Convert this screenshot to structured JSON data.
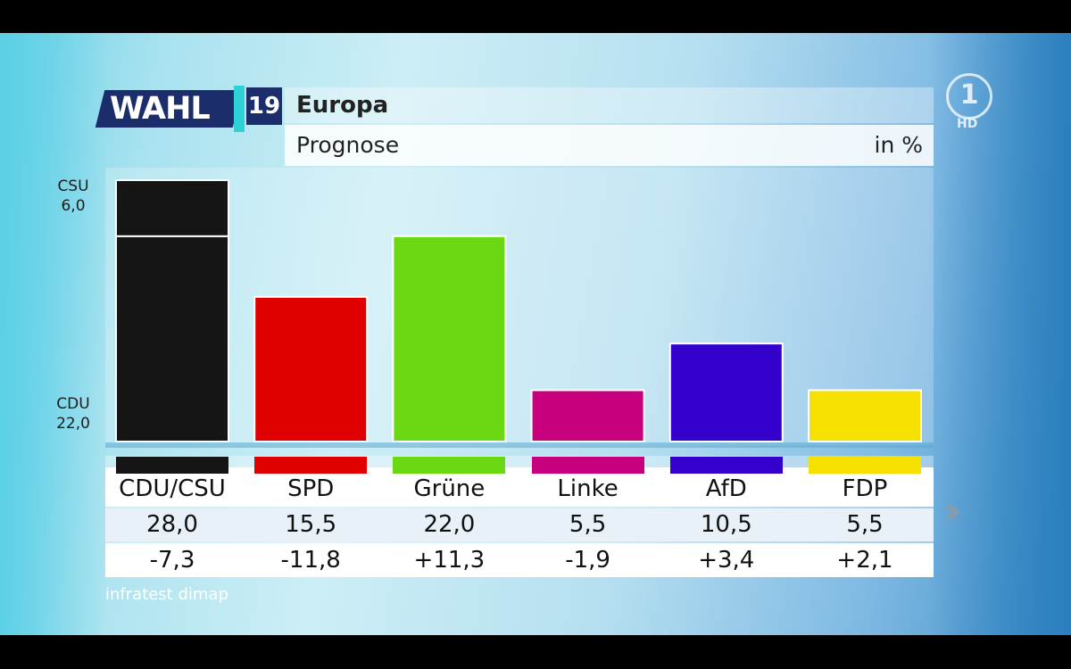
{
  "header": {
    "logo_word": "WAHL",
    "logo_year": "19",
    "title": "Europa",
    "subtitle": "Prognose",
    "unit": "in %"
  },
  "broadcaster": {
    "logo": "1",
    "badge": "HD"
  },
  "side_labels": {
    "csu_name": "CSU",
    "csu_value": "6,0",
    "cdu_name": "CDU",
    "cdu_value": "22,0"
  },
  "source": "infratest dimap",
  "nav": {
    "next_icon": "double-chevron-right-icon"
  },
  "colors": {
    "CDU/CSU": "#151515",
    "SPD": "#e00000",
    "Grüne": "#6ad812",
    "Linke": "#c8007d",
    "AfD": "#3300cc",
    "FDP": "#f5e000"
  },
  "chart_data": {
    "type": "bar",
    "title": "Europa",
    "subtitle": "Prognose",
    "unit": "in %",
    "categories": [
      "CDU/CSU",
      "SPD",
      "Grüne",
      "Linke",
      "AfD",
      "FDP"
    ],
    "values": [
      28.0,
      15.5,
      22.0,
      5.5,
      10.5,
      5.5
    ],
    "value_labels": [
      "28,0",
      "15,5",
      "22,0",
      "5,5",
      "10,5",
      "5,5"
    ],
    "change": [
      -7.3,
      -11.8,
      11.3,
      -1.9,
      3.4,
      2.1
    ],
    "change_labels": [
      "-7,3",
      "-11,8",
      "+11,3",
      "-1,9",
      "+3,4",
      "+2,1"
    ],
    "stacked_first_bar": {
      "CDU": 22.0,
      "CSU": 6.0
    },
    "ylim": [
      0,
      28
    ]
  }
}
